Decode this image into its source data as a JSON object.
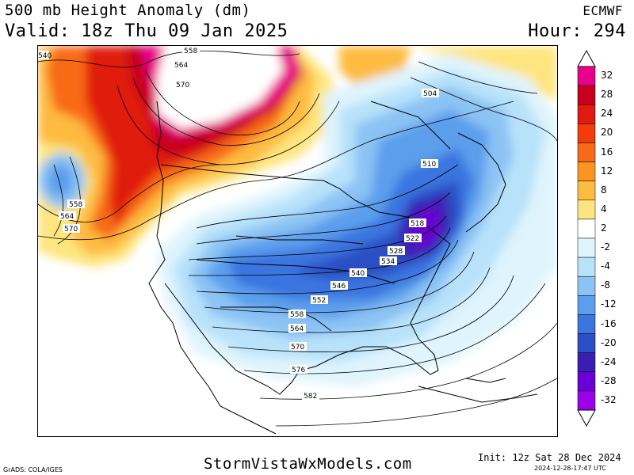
{
  "header": {
    "title": "500 mb Height Anomaly (dm)",
    "valid": "Valid: 18z Thu 09 Jan 2025",
    "model": "ECMWF",
    "hour": "Hour: 294"
  },
  "colorbar": {
    "labels": [
      "32",
      "28",
      "24",
      "20",
      "16",
      "12",
      "8",
      "4",
      "2",
      "-2",
      "-4",
      "-8",
      "-12",
      "-16",
      "-20",
      "-24",
      "-28",
      "-32"
    ],
    "colors": [
      "#e8008a",
      "#c8001e",
      "#e01a10",
      "#f23c0c",
      "#f86a18",
      "#fc9420",
      "#fdbb40",
      "#fee57e",
      "#ffffff",
      "#dff4fd",
      "#b7e2fa",
      "#8cc3f4",
      "#5c9eec",
      "#3a75e0",
      "#2950c4",
      "#3a1eb4",
      "#6a00d4",
      "#9a00ea"
    ]
  },
  "contours": {
    "labels": [
      "540",
      "558",
      "564",
      "570",
      "558",
      "564",
      "570",
      "558",
      "504",
      "510",
      "518",
      "522",
      "528",
      "534",
      "540",
      "546",
      "552",
      "558",
      "564",
      "570",
      "576",
      "582"
    ]
  },
  "footer": {
    "site": "StormVistaWxModels.com",
    "init": "Init: 12z Sat 28 Dec 2024",
    "timestamp": "2024-12-28-17:47 UTC",
    "credit": "GrADS: COLA/IGES"
  }
}
